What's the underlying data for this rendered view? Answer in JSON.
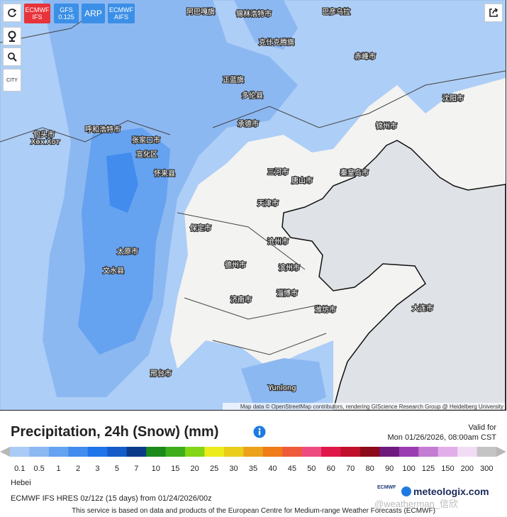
{
  "toolbar": {
    "models": [
      "ECMWF IFS",
      "GFS 0.125",
      "ARP",
      "ECMWF AIFS"
    ]
  },
  "controls": {
    "city": "CITY"
  },
  "map": {
    "cities": [
      "阿巴嘎旗",
      "锡林浩特市",
      "巴彦乌拉",
      "克什克腾旗",
      "正蓝旗",
      "多伦县",
      "呼和浩特市",
      "Хөх Хот",
      "包头市",
      "张家口市",
      "宣化区",
      "怀来县",
      "承德市",
      "三河市",
      "唐山市",
      "秦皇岛市",
      "天津市",
      "沧州市",
      "保定市",
      "太原市",
      "文水县",
      "德州市",
      "滨州市",
      "淄博市",
      "济南市",
      "潍坊市",
      "邢台市",
      "赤峰市",
      "锦州市",
      "沈阳市",
      "大连市",
      "Yunlong"
    ],
    "attribution": "Map data © OpenStreetMap contributors, rendering GIScience Research Group @ Heidelberg University"
  },
  "header": {
    "title": "Precipitation, 24h (Snow) (mm)",
    "valid_label": "Valid for",
    "valid_time": "Mon 01/26/2026, 08:00am CST"
  },
  "legend": {
    "items": [
      {
        "label": "0.1",
        "color": "#a9cbf5"
      },
      {
        "label": "0.5",
        "color": "#8cb8f2"
      },
      {
        "label": "1",
        "color": "#65a2f0"
      },
      {
        "label": "2",
        "color": "#428cee"
      },
      {
        "label": "3",
        "color": "#1f75ea"
      },
      {
        "label": "5",
        "color": "#155cc8"
      },
      {
        "label": "7",
        "color": "#0b3a88"
      },
      {
        "label": "10",
        "color": "#1a8a1a"
      },
      {
        "label": "15",
        "color": "#3fae1c"
      },
      {
        "label": "20",
        "color": "#84d516"
      },
      {
        "label": "25",
        "color": "#ecec1c"
      },
      {
        "label": "30",
        "color": "#e9cd1a"
      },
      {
        "label": "35",
        "color": "#eba21a"
      },
      {
        "label": "40",
        "color": "#ef7c18"
      },
      {
        "label": "45",
        "color": "#ef5b3a"
      },
      {
        "label": "50",
        "color": "#ee4c80"
      },
      {
        "label": "60",
        "color": "#e0184a"
      },
      {
        "label": "70",
        "color": "#c0102c"
      },
      {
        "label": "80",
        "color": "#8c0a1c"
      },
      {
        "label": "90",
        "color": "#6c1a7c"
      },
      {
        "label": "100",
        "color": "#9c3cb2"
      },
      {
        "label": "125",
        "color": "#c27cd2"
      },
      {
        "label": "150",
        "color": "#e2aee9"
      },
      {
        "label": "200",
        "color": "#f2dcf4"
      },
      {
        "label": "300",
        "color": "#c4c4c4"
      }
    ]
  },
  "footer": {
    "region": "Hebei",
    "model_run": "ECMWF IFS HRES 0z/12z (15 days) from 01/24/2026/00z",
    "ecmwf_logo": "ECMWF",
    "brand": "meteologix.com",
    "watermark": "@weatherman_信欣",
    "notice": "This service is based on data and products of the European Centre for Medium-range Weather Forecasts (ECMWF)"
  }
}
